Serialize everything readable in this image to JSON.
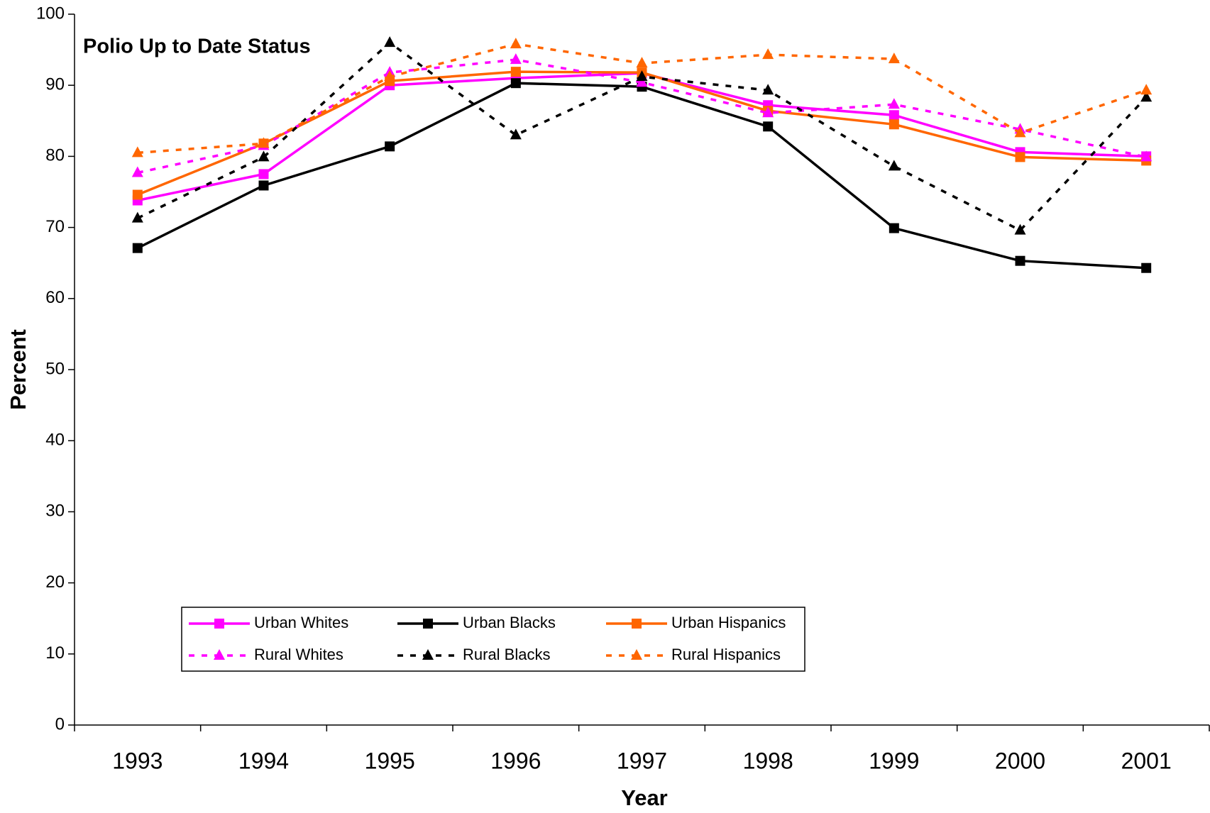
{
  "chart_data": {
    "type": "line",
    "title": "Polio Up to Date Status",
    "x_label": "Year",
    "y_label": "Percent",
    "categories": [
      "1993",
      "1994",
      "1995",
      "1996",
      "1997",
      "1998",
      "1999",
      "2000",
      "2001"
    ],
    "ylim": [
      0,
      100
    ],
    "yticks": [
      0,
      10,
      20,
      30,
      40,
      50,
      60,
      70,
      80,
      90,
      100
    ],
    "grid": false,
    "series": [
      {
        "name": "Urban Whites",
        "color": "#ff00ff",
        "marker": "square",
        "dashed": false,
        "values": [
          73.8,
          77.5,
          90,
          91,
          91.7,
          87.2,
          85.8,
          80.6,
          80
        ]
      },
      {
        "name": "Urban Blacks",
        "color": "#000000",
        "marker": "square",
        "dashed": false,
        "values": [
          67.1,
          75.9,
          81.4,
          90.3,
          89.8,
          84.2,
          69.9,
          65.3,
          64.3
        ]
      },
      {
        "name": "Urban Hispanics",
        "color": "#ff6600",
        "marker": "square",
        "dashed": false,
        "values": [
          74.6,
          81.8,
          90.6,
          91.9,
          91.8,
          86.4,
          84.5,
          79.9,
          79.4
        ]
      },
      {
        "name": "Rural Whites",
        "color": "#ff00ff",
        "marker": "triangle",
        "dashed": true,
        "values": [
          77.7,
          81.5,
          91.8,
          93.6,
          90.4,
          86.1,
          87.3,
          83.8,
          79.9
        ]
      },
      {
        "name": "Rural Blacks",
        "color": "#000000",
        "marker": "triangle",
        "dashed": true,
        "values": [
          71.3,
          79.9,
          96,
          83,
          91.2,
          89.3,
          78.6,
          69.6,
          88.3
        ]
      },
      {
        "name": "Rural Hispanics",
        "color": "#ff6600",
        "marker": "triangle",
        "dashed": true,
        "values": [
          80.5,
          81.8,
          91.2,
          95.8,
          93.1,
          94.3,
          93.7,
          83.3,
          89.3
        ]
      }
    ]
  }
}
